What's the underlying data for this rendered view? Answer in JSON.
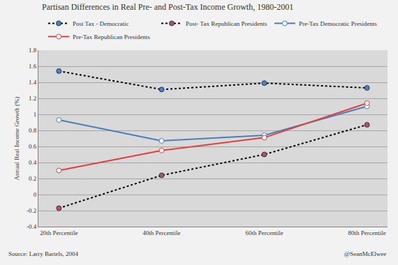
{
  "chart_data": {
    "type": "line",
    "title": "Partisan Differences in Real Pre- and Post-Tax Income Growth, 1980-2001",
    "y_label": "Annual Real Income Growth (%)",
    "categories": [
      "20th Percentile",
      "40th Percentile",
      "60th Percentile",
      "80th Percentile"
    ],
    "series": [
      {
        "name": "Post Tax - Democratic",
        "color": "#4f81bd",
        "line_style": "dotted",
        "marker": "filled",
        "values": [
          1.54,
          1.31,
          1.39,
          1.33
        ]
      },
      {
        "name": "Post- Tax Republican Presidents",
        "color": "#c0504d",
        "line_style": "dotted",
        "marker": "filled",
        "values": [
          -0.17,
          0.24,
          0.5,
          0.87
        ]
      },
      {
        "name": "Pre-Tax Democratic Presidents",
        "color": "#4a7ebb",
        "line_style": "solid",
        "marker": "open",
        "values": [
          0.93,
          0.67,
          0.74,
          1.1
        ]
      },
      {
        "name": "Pre-Tax Republican Presidents",
        "color": "#e0403f",
        "line_style": "solid",
        "marker": "open",
        "values": [
          0.3,
          0.55,
          0.71,
          1.14
        ]
      }
    ],
    "ylim": [
      -0.4,
      1.8
    ],
    "yticks": [
      -0.4,
      -0.2,
      0,
      0.2,
      0.4,
      0.6,
      0.8,
      1,
      1.2,
      1.4,
      1.6,
      1.8
    ],
    "grid": true,
    "legend": "top",
    "annotations": [
      "Source: Larry Bartels, 2004",
      "@SeanMcElwee"
    ]
  }
}
